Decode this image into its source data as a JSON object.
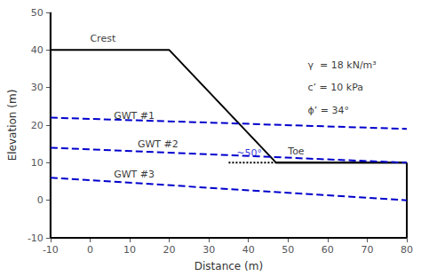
{
  "chart_data": {
    "type": "line",
    "xlabel": "Distance (m)",
    "ylabel": "Elevation (m)",
    "xlim": [
      -10,
      80
    ],
    "ylim": [
      -10,
      50
    ],
    "xticks": [
      -10,
      0,
      10,
      20,
      30,
      40,
      50,
      60,
      70,
      80
    ],
    "yticks": [
      -10,
      0,
      10,
      20,
      30,
      40,
      50
    ],
    "grid": false,
    "series": [
      {
        "x": [
          -10,
          20,
          20,
          47,
          80
        ],
        "values": [
          40,
          40,
          40,
          10,
          10
        ],
        "color": "black",
        "line_style": "solid"
      },
      {
        "x": [
          47,
          80
        ],
        "values": [
          10,
          10
        ],
        "color": "black",
        "line_style": "solid"
      },
      {
        "x": [
          -10,
          80
        ],
        "values": [
          -10,
          -10
        ],
        "color": "black",
        "line_style": "solid"
      },
      {
        "x": [
          -10,
          -10
        ],
        "values": [
          -10,
          50
        ],
        "color": "black",
        "line_style": "solid"
      },
      {
        "x": [
          80,
          80
        ],
        "values": [
          -10,
          10
        ],
        "color": "black",
        "line_style": "solid"
      },
      {
        "x": [
          -10,
          80
        ],
        "values": [
          22,
          19
        ],
        "color": "#0000cc",
        "line_style": "dashed"
      },
      {
        "x": [
          -10,
          80
        ],
        "values": [
          14,
          10
        ],
        "color": "#0000cc",
        "line_style": "dashed"
      },
      {
        "x": [
          -10,
          80
        ],
        "values": [
          6,
          0
        ],
        "color": "#0000cc",
        "line_style": "dashed"
      },
      {
        "x": [
          35,
          47
        ],
        "values": [
          10,
          10
        ],
        "color": "black",
        "line_style": "dotted"
      }
    ],
    "annotations": [
      {
        "text": "GWT #1",
        "x": 6,
        "y": 22.5
      },
      {
        "text": "GWT #2",
        "x": 12,
        "y": 15
      },
      {
        "text": "GWT #3",
        "x": 6,
        "y": 7
      },
      {
        "text": "Crest",
        "x": 0,
        "y": 43
      },
      {
        "text": "Toe",
        "x": 50,
        "y": 13
      },
      {
        "text": "~50°",
        "x": 37,
        "y": 12.5,
        "color": "#0000cc"
      },
      {
        "text": "γ  = 18 kN/m³",
        "x": 55,
        "y": 36
      },
      {
        "text": "c’ = 10 kPa",
        "x": 55,
        "y": 30
      },
      {
        "text": "ϕ’ = 34°",
        "x": 55,
        "y": 24
      }
    ]
  }
}
